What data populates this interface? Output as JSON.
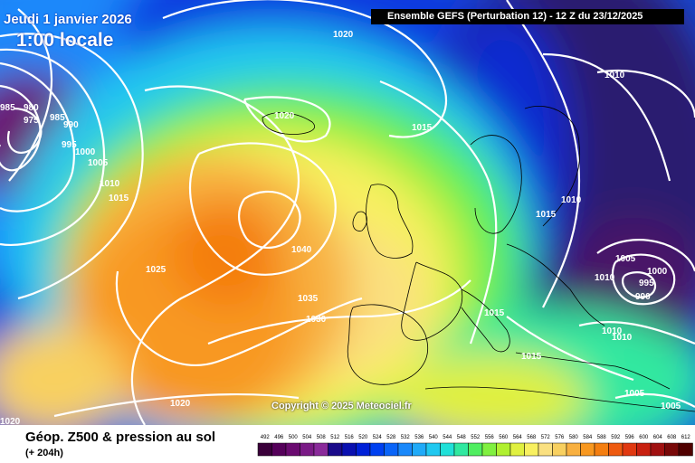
{
  "header": {
    "date": "Jeudi 1 janvier 2026",
    "local_time": "1:00 locale",
    "ensemble": "Ensemble GEFS  (Perturbation 12)  -  12 Z du 23/12/2025"
  },
  "footer": {
    "title": "Géop. Z500 & pression au sol",
    "subtitle": "(+ 204h)",
    "copyright": "Copyright © 2025 Meteociel.fr"
  },
  "legend": {
    "values": [
      "492",
      "496",
      "500",
      "504",
      "508",
      "512",
      "516",
      "520",
      "524",
      "528",
      "532",
      "536",
      "540",
      "544",
      "548",
      "552",
      "556",
      "560",
      "564",
      "568",
      "572",
      "576",
      "580",
      "584",
      "588",
      "592",
      "596",
      "600",
      "604",
      "608",
      "612"
    ],
    "colors": [
      "#3a003a",
      "#55005a",
      "#6a0a70",
      "#7a1a86",
      "#8a2a9a",
      "#1a0a8a",
      "#0a10b0",
      "#0020d8",
      "#0040f0",
      "#0a64f8",
      "#1a88fa",
      "#20aaf8",
      "#20c8f0",
      "#20e0d8",
      "#30e8a0",
      "#50ee60",
      "#80f040",
      "#b0f030",
      "#e0f040",
      "#f8f060",
      "#fae080",
      "#f8d060",
      "#f8b040",
      "#f89820",
      "#f47e10",
      "#ee5a10",
      "#e03810",
      "#c82010",
      "#a01010",
      "#780808",
      "#500000"
    ]
  },
  "isobars": [
    "1020",
    "985",
    "975",
    "980",
    "985",
    "990",
    "995",
    "1000",
    "1005",
    "1010",
    "1015",
    "1020",
    "1025",
    "1020",
    "1040",
    "1035",
    "1030",
    "1015",
    "1010",
    "1015",
    "1010",
    "1005",
    "1000",
    "995",
    "990",
    "1010",
    "1010",
    "1015",
    "1005",
    "1005",
    "1020",
    "1010"
  ]
}
